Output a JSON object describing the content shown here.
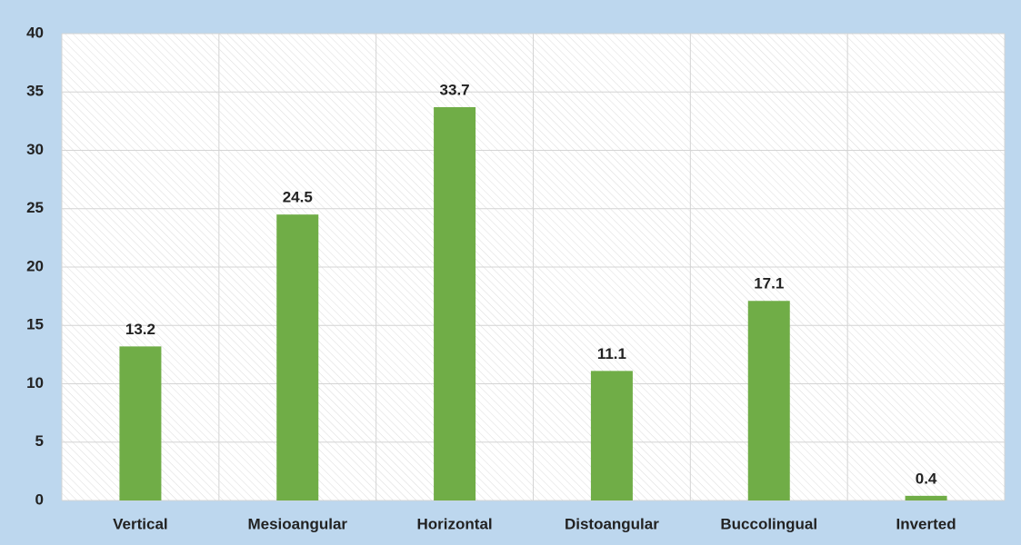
{
  "chart_data": {
    "type": "bar",
    "categories": [
      "Vertical",
      "Mesioangular",
      "Horizontal",
      "Distoangular",
      "Buccolingual",
      "Inverted"
    ],
    "values": [
      13.2,
      24.5,
      33.7,
      11.1,
      17.1,
      0.4
    ],
    "color": "#70ad47",
    "ylim": [
      0,
      40
    ],
    "yticks": [
      0,
      5,
      10,
      15,
      20,
      25,
      30,
      35,
      40
    ],
    "grid": true
  }
}
